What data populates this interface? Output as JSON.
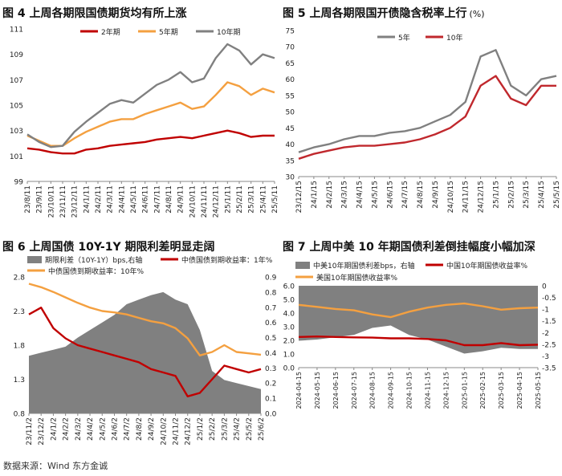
{
  "source": "数据来源：Wind 东方金诚",
  "chart_data": [
    {
      "id": "fig4",
      "type": "line",
      "title": "图 4  上周各期限国债期货均有所上涨",
      "x_ticks": [
        "23/8/11",
        "23/9/11",
        "23/10/11",
        "23/11/11",
        "23/12/11",
        "24/1/11",
        "24/2/11",
        "24/3/11",
        "24/4/11",
        "24/5/11",
        "24/6/11",
        "24/7/11",
        "24/8/11",
        "24/9/11",
        "24/10/11",
        "24/11/11",
        "24/12/11",
        "25/1/11",
        "25/2/11",
        "25/3/11",
        "25/4/11",
        "25/5/11"
      ],
      "ylim": [
        99,
        111
      ],
      "yticks": [
        "99",
        "101",
        "103",
        "105",
        "107",
        "109",
        "111"
      ],
      "series": [
        {
          "name": "2年期",
          "color": "#c00000",
          "values": [
            101.6,
            101.5,
            101.3,
            101.2,
            101.2,
            101.5,
            101.6,
            101.8,
            101.9,
            102.0,
            102.1,
            102.3,
            102.4,
            102.5,
            102.4,
            102.6,
            102.8,
            103.0,
            102.8,
            102.5,
            102.6,
            102.6
          ]
        },
        {
          "name": "5年期",
          "color": "#f4a040",
          "values": [
            102.6,
            102.2,
            101.8,
            101.8,
            102.4,
            102.9,
            103.3,
            103.7,
            103.9,
            103.9,
            104.3,
            104.6,
            104.9,
            105.2,
            104.7,
            104.9,
            105.8,
            106.8,
            106.5,
            105.8,
            106.3,
            106.0
          ]
        },
        {
          "name": "10年期",
          "color": "#808080",
          "values": [
            102.7,
            102.1,
            101.7,
            101.8,
            102.9,
            103.7,
            104.4,
            105.1,
            105.4,
            105.2,
            105.9,
            106.6,
            107.0,
            107.6,
            106.8,
            107.1,
            108.7,
            109.8,
            109.3,
            108.2,
            109.0,
            108.7
          ]
        }
      ]
    },
    {
      "id": "fig5",
      "type": "line",
      "title": "图 5  上周各期限国开债隐含税率上行",
      "title_unit": "(%)",
      "x_ticks": [
        "23/12/15",
        "24/1/15",
        "24/2/15",
        "24/3/15",
        "24/4/15",
        "24/5/15",
        "24/6/15",
        "24/7/15",
        "24/8/15",
        "24/9/15",
        "24/10/15",
        "24/11/15",
        "24/12/15",
        "25/1/15",
        "25/2/15",
        "25/3/15",
        "25/4/15",
        "25/5/15"
      ],
      "ylim": [
        30,
        75
      ],
      "yticks": [
        "30",
        "35",
        "40",
        "45",
        "50",
        "55",
        "60",
        "65",
        "70",
        "75"
      ],
      "series": [
        {
          "name": "5年",
          "color": "#808080",
          "values": [
            37.5,
            39,
            40,
            41.5,
            42.5,
            42.5,
            43.5,
            44,
            45,
            47,
            49,
            53,
            67,
            69,
            58,
            55,
            60,
            61
          ]
        },
        {
          "name": "10年",
          "color": "#c0282d",
          "values": [
            35.5,
            37,
            38,
            39,
            39.5,
            39.5,
            40,
            40.5,
            41.5,
            43,
            45,
            48.5,
            58,
            61,
            54,
            52,
            58,
            58
          ]
        }
      ]
    },
    {
      "id": "fig6",
      "type": "line",
      "title": "图 6  上周国债 10Y-1Y 期限利差明显走阔",
      "x_ticks": [
        "23/11/2",
        "23/12/2",
        "24/1/2",
        "24/2/2",
        "24/3/2",
        "24/4/2",
        "24/5/2",
        "24/6/2",
        "24/7/2",
        "24/8/2",
        "24/9/2",
        "24/10/2",
        "24/11/2",
        "24/12/2",
        "25/1/2",
        "25/2/2",
        "25/3/2",
        "25/4/2",
        "25/5/2",
        "25/6/2"
      ],
      "ylim_left": [
        0.8,
        2.8
      ],
      "yticks_left": [
        "0.8",
        "1.3",
        "1.8",
        "2.3",
        "2.8"
      ],
      "ylim_right": [
        0.0,
        0.9
      ],
      "yticks_right": [
        "0.0",
        "0.1",
        "0.2",
        "0.3",
        "0.4",
        "0.5",
        "0.6",
        "0.7",
        "0.8",
        "0.9"
      ],
      "series": [
        {
          "name": "期限利差（10Y-1Y）bps,右轴",
          "color": "#808080",
          "kind": "area",
          "axis": "right",
          "values": [
            0.38,
            0.4,
            0.42,
            0.44,
            0.5,
            0.55,
            0.6,
            0.65,
            0.72,
            0.75,
            0.78,
            0.8,
            0.75,
            0.72,
            0.55,
            0.28,
            0.22,
            0.2,
            0.18,
            0.16
          ]
        },
        {
          "name": "中债国债到期收益率：1年%",
          "color": "#c00000",
          "axis": "left",
          "values": [
            2.25,
            2.35,
            2.05,
            1.9,
            1.8,
            1.75,
            1.7,
            1.65,
            1.6,
            1.55,
            1.45,
            1.4,
            1.35,
            1.05,
            1.1,
            1.3,
            1.5,
            1.45,
            1.4,
            1.45
          ]
        },
        {
          "name": "中债国债到期收益率：10年%",
          "color": "#f4a040",
          "axis": "left",
          "values": [
            2.7,
            2.65,
            2.58,
            2.5,
            2.42,
            2.35,
            2.3,
            2.28,
            2.25,
            2.2,
            2.15,
            2.12,
            2.05,
            1.9,
            1.65,
            1.7,
            1.8,
            1.7,
            1.68,
            1.66
          ]
        }
      ]
    },
    {
      "id": "fig7",
      "type": "line",
      "title": "图 7  上周中美 10 年期国债利差倒挂幅度小幅加深",
      "x_ticks": [
        "2024-04-15",
        "2024-05-15",
        "2024-06-15",
        "2024-07-15",
        "2024-08-15",
        "2024-09-15",
        "2024-10-15",
        "2024-11-15",
        "2024-12-15",
        "2025-01-15",
        "2025-02-15",
        "2025-03-15",
        "2025-04-15",
        "2025-05-15"
      ],
      "ylim_left": [
        0.0,
        6.0
      ],
      "yticks_left": [
        "0.0",
        "1.0",
        "2.0",
        "3.0",
        "4.0",
        "5.0",
        "6.0"
      ],
      "ylim_right": [
        -3.5,
        0
      ],
      "yticks_right": [
        "0",
        "-0.5",
        "-1",
        "-1.5",
        "-2",
        "-2.5",
        "-3",
        "-3.5"
      ],
      "series": [
        {
          "name": "中美10年期国债利差bps，右轴",
          "color": "#808080",
          "kind": "area",
          "axis": "right",
          "values": [
            -2.35,
            -2.3,
            -2.2,
            -2.1,
            -1.8,
            -1.7,
            -2.1,
            -2.3,
            -2.6,
            -2.9,
            -2.8,
            -2.65,
            -2.7,
            -2.7
          ]
        },
        {
          "name": "中国10年期国债收益率%",
          "color": "#c00000",
          "axis": "left",
          "values": [
            2.25,
            2.28,
            2.25,
            2.22,
            2.2,
            2.15,
            2.15,
            2.1,
            2.0,
            1.65,
            1.65,
            1.8,
            1.65,
            1.68
          ]
        },
        {
          "name": "美国10年期国债收益率%",
          "color": "#f4a040",
          "axis": "left",
          "values": [
            4.6,
            4.45,
            4.3,
            4.2,
            3.9,
            3.7,
            4.1,
            4.4,
            4.6,
            4.7,
            4.5,
            4.25,
            4.35,
            4.4
          ]
        }
      ]
    }
  ]
}
